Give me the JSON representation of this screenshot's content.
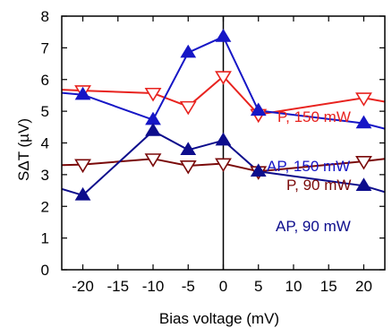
{
  "chart_data": {
    "type": "line",
    "xlabel": "Bias voltage (mV)",
    "ylabel": "SΔT (µV)",
    "xlim": [
      -23,
      23
    ],
    "ylim": [
      0,
      8
    ],
    "xticks": [
      -20,
      -15,
      -10,
      -5,
      0,
      5,
      10,
      15,
      20
    ],
    "yticks": [
      0,
      1,
      2,
      3,
      4,
      5,
      6,
      7,
      8
    ],
    "xtick_labels": [
      "-20",
      "-15",
      "-10",
      "-5",
      "0",
      "5",
      "10",
      "15",
      "20"
    ],
    "ytick_labels": [
      "0",
      "1",
      "2",
      "3",
      "4",
      "5",
      "6",
      "7",
      "8"
    ],
    "vertical_line_x": 0,
    "series": [
      {
        "name": "P, 150 mW",
        "color": "#e8231f",
        "marker": "open-triangle-down",
        "points": [
          [
            -23,
            5.68
          ],
          [
            -20,
            5.65
          ],
          [
            -10,
            5.57
          ],
          [
            -5,
            5.15
          ],
          [
            0,
            6.1
          ],
          [
            5,
            4.9
          ],
          [
            20,
            5.42
          ],
          [
            23,
            5.3
          ]
        ]
      },
      {
        "name": "AP, 150 mW",
        "color": "#1616c6",
        "marker": "filled-triangle-up",
        "points": [
          [
            -23,
            5.58
          ],
          [
            -20,
            5.52
          ],
          [
            -10,
            4.73
          ],
          [
            -5,
            6.85
          ],
          [
            0,
            7.35
          ],
          [
            5,
            5.02
          ],
          [
            20,
            4.62
          ],
          [
            23,
            4.45
          ]
        ]
      },
      {
        "name": "P, 90 mW",
        "color": "#7a0a0a",
        "marker": "open-triangle-down",
        "points": [
          [
            -23,
            3.3
          ],
          [
            -20,
            3.32
          ],
          [
            -10,
            3.5
          ],
          [
            -5,
            3.28
          ],
          [
            0,
            3.35
          ],
          [
            5,
            3.1
          ],
          [
            20,
            3.42
          ],
          [
            23,
            3.5
          ]
        ]
      },
      {
        "name": "AP, 90 mW",
        "color": "#0d0d8c",
        "marker": "filled-triangle-up",
        "points": [
          [
            -23,
            2.55
          ],
          [
            -20,
            2.35
          ],
          [
            -10,
            4.38
          ],
          [
            -5,
            3.78
          ],
          [
            0,
            4.08
          ],
          [
            5,
            3.1
          ],
          [
            20,
            2.65
          ],
          [
            23,
            2.45
          ]
        ]
      }
    ]
  }
}
